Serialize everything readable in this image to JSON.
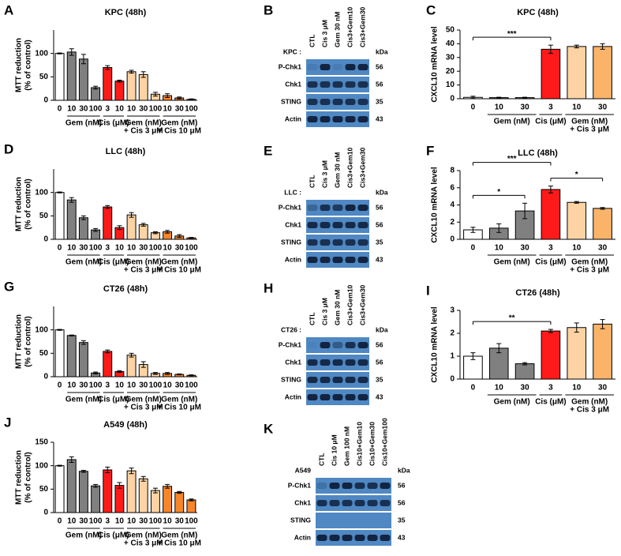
{
  "chart_data": [
    {
      "type": "bar",
      "panel": "A",
      "title": "KPC (48h)",
      "ylabel": [
        "MTT reduction",
        "(% of control)"
      ],
      "ylim": [
        0,
        150
      ],
      "yticks": [
        0,
        50,
        100
      ],
      "groups": [
        {
          "categories": [
            "0"
          ],
          "values": [
            100
          ],
          "errors": [
            1
          ],
          "color": "#ffffff"
        },
        {
          "label": "Gem (nM)",
          "categories": [
            "10",
            "30",
            "100"
          ],
          "values": [
            103,
            88,
            27
          ],
          "errors": [
            7,
            10,
            3
          ],
          "color": "#808080"
        },
        {
          "label": "Cis (μM)",
          "categories": [
            "3",
            "10"
          ],
          "values": [
            70,
            41
          ],
          "errors": [
            4,
            2
          ],
          "color": "#ff1a1a"
        },
        {
          "label": [
            "Gem (nM)",
            "+ Cis 3 μM"
          ],
          "categories": [
            "10",
            "30",
            "100"
          ],
          "values": [
            61,
            55,
            13
          ],
          "errors": [
            3,
            6,
            4
          ],
          "color": "#fdd3a3"
        },
        {
          "label": [
            "Gem (nM)",
            "+ Cis 10 μM"
          ],
          "categories": [
            "10",
            "30",
            "100"
          ],
          "values": [
            10,
            5,
            2
          ],
          "errors": [
            4,
            2,
            1
          ],
          "color": "#f7862a"
        }
      ]
    },
    {
      "type": "bar",
      "panel": "D",
      "title": "LLC (48h)",
      "ylabel": [
        "MTT reduction",
        "(% of control)"
      ],
      "ylim": [
        0,
        150
      ],
      "yticks": [
        0,
        50,
        100
      ],
      "groups": [
        {
          "categories": [
            "0"
          ],
          "values": [
            100
          ],
          "errors": [
            1
          ],
          "color": "#ffffff"
        },
        {
          "label": "Gem (nM)",
          "categories": [
            "10",
            "30",
            "100"
          ],
          "values": [
            84,
            46,
            20
          ],
          "errors": [
            5,
            4,
            3
          ],
          "color": "#808080"
        },
        {
          "label": "Cis (μM)",
          "categories": [
            "3",
            "10"
          ],
          "values": [
            69,
            25
          ],
          "errors": [
            3,
            4
          ],
          "color": "#ff1a1a"
        },
        {
          "label": [
            "Gem (nM)",
            "+ Cis 3 μM"
          ],
          "categories": [
            "10",
            "30",
            "100"
          ],
          "values": [
            52,
            31,
            14
          ],
          "errors": [
            5,
            3,
            2
          ],
          "color": "#fdd3a3"
        },
        {
          "label": [
            "Gem (nM)",
            "+ Cis 10 μM"
          ],
          "categories": [
            "10",
            "30",
            "100"
          ],
          "values": [
            16,
            7,
            3
          ],
          "errors": [
            3,
            3,
            1
          ],
          "color": "#f7862a"
        }
      ]
    },
    {
      "type": "bar",
      "panel": "G",
      "title": "CT26 (48h)",
      "ylabel": [
        "MTT reduction",
        "(% of control)"
      ],
      "ylim": [
        0,
        150
      ],
      "yticks": [
        0,
        50,
        100
      ],
      "groups": [
        {
          "categories": [
            "0"
          ],
          "values": [
            100
          ],
          "errors": [
            1
          ],
          "color": "#ffffff"
        },
        {
          "label": "Gem (nM)",
          "categories": [
            "10",
            "30",
            "100"
          ],
          "values": [
            88,
            73,
            8
          ],
          "errors": [
            1,
            4,
            2
          ],
          "color": "#808080"
        },
        {
          "label": "Cis (μM)",
          "categories": [
            "3",
            "10"
          ],
          "values": [
            54,
            11
          ],
          "errors": [
            3,
            2
          ],
          "color": "#ff1a1a"
        },
        {
          "label": [
            "Gem (nM)",
            "+ Cis 3 μM"
          ],
          "categories": [
            "10",
            "30",
            "100"
          ],
          "values": [
            46,
            26,
            7
          ],
          "errors": [
            4,
            6,
            2
          ],
          "color": "#fdd3a3"
        },
        {
          "label": [
            "Gem (nM)",
            "+ Cis 10 μM"
          ],
          "categories": [
            "10",
            "30",
            "100"
          ],
          "values": [
            7,
            5,
            3
          ],
          "errors": [
            2,
            1,
            1
          ],
          "color": "#f7862a"
        }
      ]
    },
    {
      "type": "bar",
      "panel": "J",
      "title": "A549 (48h)",
      "ylabel": [
        "MTT reduction",
        "(% of control)"
      ],
      "ylim": [
        0,
        150
      ],
      "yticks": [
        0,
        50,
        100,
        150
      ],
      "groups": [
        {
          "categories": [
            "0"
          ],
          "values": [
            100
          ],
          "errors": [
            1
          ],
          "color": "#ffffff"
        },
        {
          "label": "Gem (nM)",
          "categories": [
            "10",
            "30",
            "100"
          ],
          "values": [
            113,
            88,
            57
          ],
          "errors": [
            6,
            2,
            3
          ],
          "color": "#808080"
        },
        {
          "label": "Cis (μM)",
          "categories": [
            "3",
            "10"
          ],
          "values": [
            91,
            58
          ],
          "errors": [
            6,
            6
          ],
          "color": "#ff1a1a"
        },
        {
          "label": [
            "Gem (nM)",
            "+ Cis 3 μM"
          ],
          "categories": [
            "10",
            "30",
            "100"
          ],
          "values": [
            89,
            72,
            47
          ],
          "errors": [
            6,
            5,
            5
          ],
          "color": "#fdd3a3"
        },
        {
          "label": [
            "Gem (nM)",
            "+ Cis 10 μM"
          ],
          "categories": [
            "10",
            "30",
            "100"
          ],
          "values": [
            56,
            43,
            27
          ],
          "errors": [
            4,
            2,
            2
          ],
          "color": "#f7862a"
        }
      ]
    },
    {
      "type": "bar",
      "panel": "C",
      "title": "KPC (48h)",
      "ylabel": "CXCL10 mRNA level",
      "ylim": [
        0,
        50
      ],
      "yticks": [
        0,
        10,
        20,
        30,
        40,
        50
      ],
      "groups": [
        {
          "categories": [
            "0"
          ],
          "values": [
            1
          ],
          "errors": [
            0.8
          ],
          "color": "#ffffff"
        },
        {
          "label": "Gem (nM)",
          "categories": [
            "10",
            "30"
          ],
          "values": [
            0.8,
            0.8
          ],
          "errors": [
            0.3,
            0.3
          ],
          "color": "#808080"
        },
        {
          "label": "Cis (μM)",
          "categories": [
            "3"
          ],
          "values": [
            36
          ],
          "errors": [
            3
          ],
          "color": "#ff1a1a"
        },
        {
          "label": [
            "Gem (nM)",
            "+ Cis 3 μM"
          ],
          "categories": [
            "10",
            "30"
          ],
          "values": [
            38,
            38
          ],
          "errors": [
            1,
            2
          ],
          "colors": [
            "#fdd3a3",
            "#f9b46a"
          ]
        }
      ],
      "significance": [
        {
          "label": "***",
          "between": [
            0,
            3
          ]
        }
      ]
    },
    {
      "type": "bar",
      "panel": "F",
      "title": "LLC (48h)",
      "ylabel": "CXCL10 mRNA level",
      "ylim": [
        0,
        8
      ],
      "yticks": [
        0,
        2,
        4,
        6,
        8
      ],
      "groups": [
        {
          "categories": [
            "0"
          ],
          "values": [
            1.1
          ],
          "errors": [
            0.3
          ],
          "color": "#ffffff"
        },
        {
          "label": "Gem (nM)",
          "categories": [
            "10",
            "30"
          ],
          "values": [
            1.3,
            3.3
          ],
          "errors": [
            0.5,
            0.9
          ],
          "color": "#808080"
        },
        {
          "label": "Cis (μM)",
          "categories": [
            "3"
          ],
          "values": [
            5.8
          ],
          "errors": [
            0.4
          ],
          "color": "#ff1a1a"
        },
        {
          "label": [
            "Gem (nM)",
            "+ Cis 3 μM"
          ],
          "categories": [
            "10",
            "30"
          ],
          "values": [
            4.3,
            3.6
          ],
          "errors": [
            0.1,
            0.1
          ],
          "colors": [
            "#fdd3a3",
            "#f9b46a"
          ]
        }
      ],
      "significance": [
        {
          "label": "*",
          "between": [
            0,
            2
          ]
        },
        {
          "label": "***",
          "between": [
            0,
            3
          ]
        },
        {
          "label": "*",
          "between": [
            3,
            5
          ]
        }
      ]
    },
    {
      "type": "bar",
      "panel": "I",
      "title": "CT26 (48h)",
      "ylabel": "CXCL10 mRNA level",
      "ylim": [
        0,
        3
      ],
      "yticks": [
        0,
        1,
        2,
        3
      ],
      "groups": [
        {
          "categories": [
            "0"
          ],
          "values": [
            1.0
          ],
          "errors": [
            0.15
          ],
          "color": "#ffffff"
        },
        {
          "label": "Gem (nM)",
          "categories": [
            "10",
            "30"
          ],
          "values": [
            1.35,
            0.67
          ],
          "errors": [
            0.2,
            0.05
          ],
          "color": "#808080"
        },
        {
          "label": "Cis (μM)",
          "categories": [
            "3"
          ],
          "values": [
            2.1
          ],
          "errors": [
            0.07
          ],
          "color": "#ff1a1a"
        },
        {
          "label": [
            "Gem (nM)",
            "+ Cis 3 μM"
          ],
          "categories": [
            "10",
            "30"
          ],
          "values": [
            2.25,
            2.4
          ],
          "errors": [
            0.2,
            0.2
          ],
          "colors": [
            "#fdd3a3",
            "#f9b46a"
          ]
        }
      ],
      "significance": [
        {
          "label": "**",
          "between": [
            0,
            3
          ]
        }
      ]
    }
  ],
  "blots": [
    {
      "panel": "B",
      "cell_line": "KPC :",
      "lanes": [
        "CTL",
        "Cis 3 μM",
        "Gem 30 nM",
        "Cis3+Gem10",
        "Cis3+Gem30"
      ],
      "kda_header": "kDa",
      "rows": [
        {
          "name": "P-Chk1",
          "kda": "56"
        },
        {
          "name": "Chk1",
          "kda": "56"
        },
        {
          "name": "STING",
          "kda": "35"
        },
        {
          "name": "Actin",
          "kda": "43"
        }
      ]
    },
    {
      "panel": "E",
      "cell_line": "LLC :",
      "lanes": [
        "CTL",
        "Cis 3 μM",
        "Gem 30 nM",
        "Cis3+Gem10",
        "Cis3+Gem30"
      ],
      "kda_header": "kDa",
      "rows": [
        {
          "name": "P-Chk1",
          "kda": "56"
        },
        {
          "name": "Chk1",
          "kda": "56"
        },
        {
          "name": "STING",
          "kda": "35"
        },
        {
          "name": "Actin",
          "kda": "43"
        }
      ]
    },
    {
      "panel": "H",
      "cell_line": "CT26 :",
      "lanes": [
        "CTL",
        "Cis 3 μM",
        "Gem 30 nM",
        "Cis3+Gem10",
        "Cis3+Gem30"
      ],
      "kda_header": "kDa",
      "rows": [
        {
          "name": "P-Chk1",
          "kda": "56"
        },
        {
          "name": "Chk1",
          "kda": "56"
        },
        {
          "name": "STING",
          "kda": "35"
        },
        {
          "name": "Actin",
          "kda": "43"
        }
      ]
    },
    {
      "panel": "K",
      "cell_line": "A549",
      "lanes": [
        "CTL",
        "Cis 10 μM",
        "Gem 100 nM",
        "Cis10+Gem10",
        "Cis10+Gem30",
        "Cis10+Gem100"
      ],
      "kda_header": "kDa",
      "rows": [
        {
          "name": "P-Chk1",
          "kda": "56"
        },
        {
          "name": "Chk1",
          "kda": "56"
        },
        {
          "name": "STING",
          "kda": "35"
        },
        {
          "name": "Actin",
          "kda": "43"
        }
      ]
    }
  ]
}
